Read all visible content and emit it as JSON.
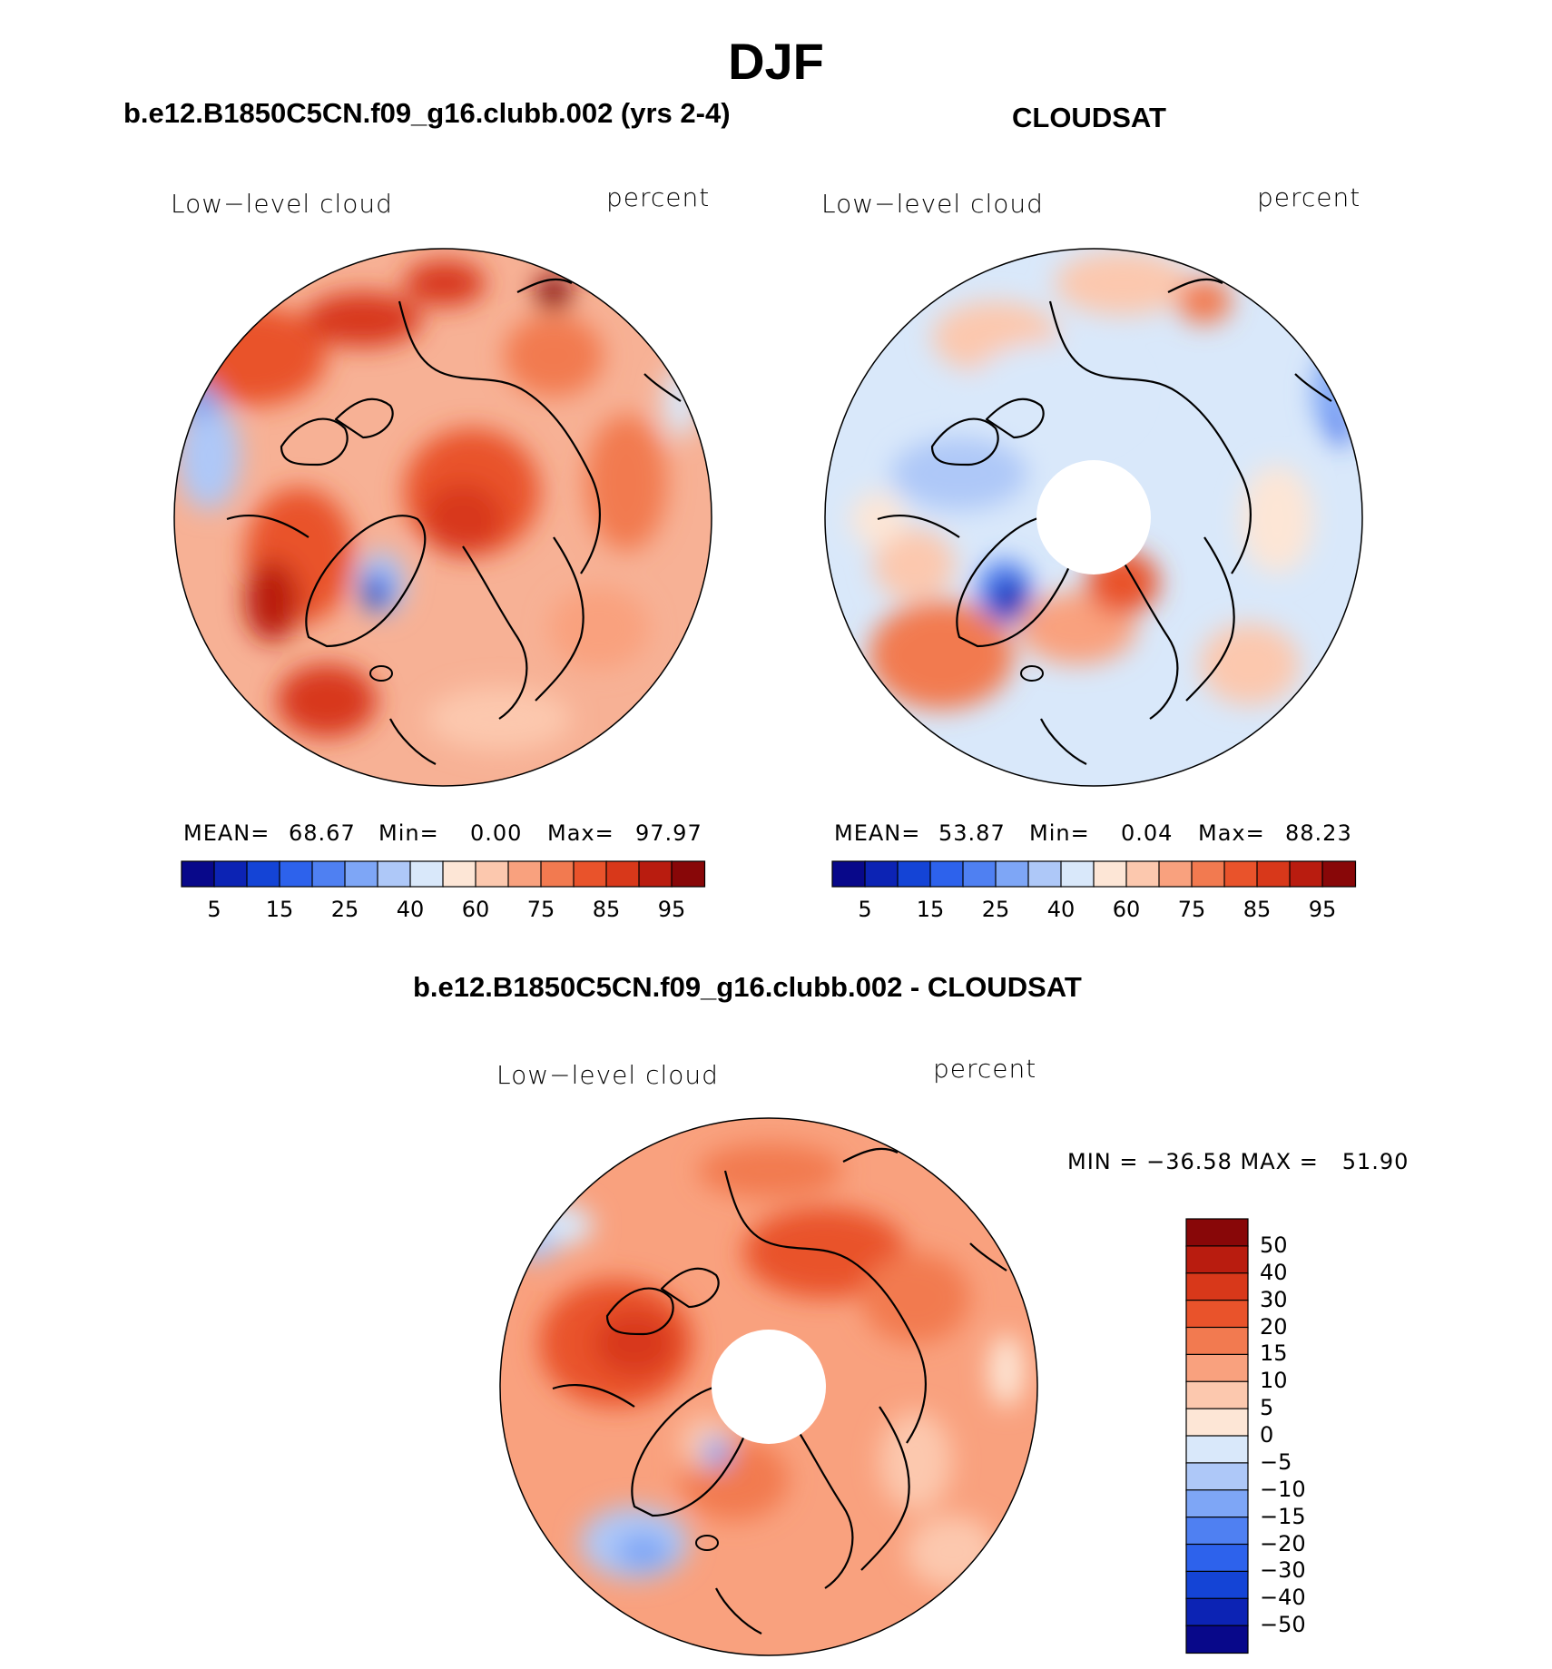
{
  "figure": {
    "title": "DJF"
  },
  "panels": [
    {
      "id": "model",
      "title": "b.e12.B1850C5CN.f09_g16.clubb.002 (yrs 2-4)",
      "left_label": "Low−level cloud",
      "right_label": "percent",
      "stats": {
        "mean_label": "MEAN=",
        "mean": "68.67",
        "min_label": "Min=",
        "min": "0.00",
        "max_label": "Max=",
        "max": "97.97"
      },
      "pole_hole": false,
      "style": "model"
    },
    {
      "id": "obs",
      "title": "CLOUDSAT",
      "left_label": "Low−level cloud",
      "right_label": "percent",
      "stats": {
        "mean_label": "MEAN=",
        "mean": "53.87",
        "min_label": "Min=",
        "min": "0.04",
        "max_label": "Max=",
        "max": "88.23"
      },
      "pole_hole": true,
      "style": "obs"
    },
    {
      "id": "diff",
      "title": "b.e12.B1850C5CN.f09_g16.clubb.002 - CLOUDSAT",
      "left_label": "Low−level cloud",
      "right_label": "percent",
      "stats_text": "MIN = −36.58 MAX =   51.90",
      "pole_hole": true,
      "style": "diff"
    }
  ],
  "colorbar_abs": {
    "colors": [
      "#08088a",
      "#0c23b4",
      "#1444d6",
      "#2d62ec",
      "#4f80f2",
      "#7ea6f6",
      "#aec8f8",
      "#d9e8fa",
      "#fde6d6",
      "#fcc8ae",
      "#f9a17e",
      "#f27a50",
      "#e9532b",
      "#d8381a",
      "#b91c0f",
      "#880708"
    ],
    "tick_labels": [
      "5",
      "15",
      "25",
      "40",
      "60",
      "75",
      "85",
      "95"
    ]
  },
  "colorbar_diff": {
    "colors": [
      "#880708",
      "#b91c0f",
      "#d8381a",
      "#e9532b",
      "#f27a50",
      "#f9a17e",
      "#fcc8ae",
      "#fde6d6",
      "#d9e8fa",
      "#aec8f8",
      "#7ea6f6",
      "#4f80f2",
      "#2d62ec",
      "#1444d6",
      "#0c23b4",
      "#08088a"
    ],
    "tick_labels": [
      "50",
      "40",
      "30",
      "20",
      "15",
      "10",
      "5",
      "0",
      "−5",
      "−10",
      "−15",
      "−20",
      "−30",
      "−40",
      "−50"
    ]
  }
}
